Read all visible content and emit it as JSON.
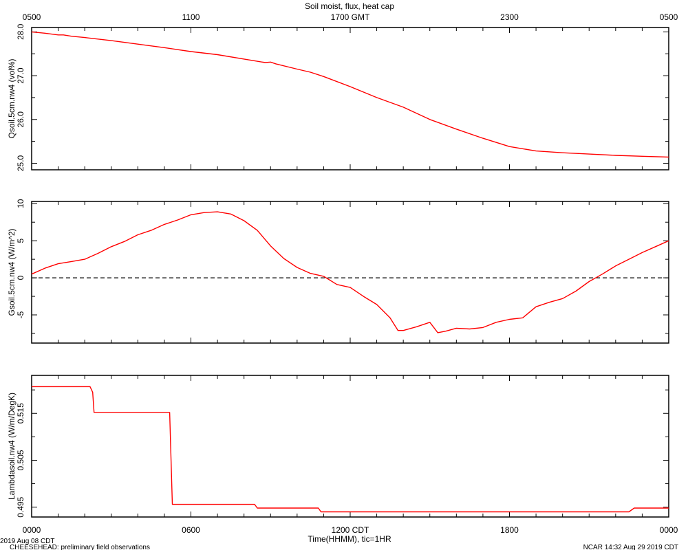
{
  "chart_data": {
    "type": "line",
    "title": "Soil moist, flux, heat cap",
    "top_axis": {
      "ticks": [
        {
          "hour": 0,
          "label": "0500"
        },
        {
          "hour": 6,
          "label": "1100"
        },
        {
          "hour": 12,
          "label": "1700 GMT"
        },
        {
          "hour": 18,
          "label": "2300"
        },
        {
          "hour": 24,
          "label": "0500"
        }
      ]
    },
    "bottom_axis": {
      "title": "Time(HHMM), tic=1HR",
      "ticks": [
        {
          "hour": 0,
          "label": "0000"
        },
        {
          "hour": 6,
          "label": "0600"
        },
        {
          "hour": 12,
          "label": "1200 CDT"
        },
        {
          "hour": 18,
          "label": "1800"
        },
        {
          "hour": 24,
          "label": "0000"
        }
      ],
      "xlim": [
        0,
        24
      ]
    },
    "line_color": "#ff0000",
    "panels": [
      {
        "ylabel": "Qsoil.5cm.nw4 (vol%)",
        "ylim": [
          24.85,
          28.1
        ],
        "yticks": [
          25.0,
          26.0,
          27.0,
          28.0
        ],
        "ytick_labels": [
          "25.0",
          "26.0",
          "27.0",
          "28.0"
        ],
        "x": [
          0,
          0.5,
          1,
          1.2,
          1.5,
          2,
          3,
          4,
          5,
          6,
          7,
          8,
          8.8,
          9,
          9.2,
          10,
          10.5,
          11,
          12,
          13,
          14,
          15,
          16,
          17,
          18,
          19,
          20,
          21,
          22,
          23,
          24
        ],
        "y": [
          28.0,
          27.97,
          27.93,
          27.93,
          27.9,
          27.87,
          27.8,
          27.72,
          27.64,
          27.55,
          27.48,
          27.38,
          27.3,
          27.31,
          27.27,
          27.15,
          27.08,
          26.98,
          26.75,
          26.5,
          26.28,
          26.0,
          25.78,
          25.57,
          25.38,
          25.28,
          25.24,
          25.21,
          25.18,
          25.16,
          25.14
        ]
      },
      {
        "ylabel": "Gsoil.5cm.nw4 (W/m^2)",
        "ylim": [
          -8.8,
          10.3
        ],
        "yticks": [
          -5,
          0,
          5,
          10
        ],
        "ytick_labels": [
          "-5",
          "0",
          "5",
          "10"
        ],
        "reference_line": 0,
        "x": [
          0,
          0.5,
          1,
          1.5,
          2,
          2.5,
          3,
          3.5,
          4,
          4.5,
          5,
          5.5,
          6,
          6.5,
          7,
          7.5,
          8,
          8.5,
          9,
          9.5,
          10,
          10.5,
          11,
          11.5,
          12,
          12.5,
          13,
          13.5,
          13.8,
          14,
          14.5,
          15,
          15.3,
          15.6,
          16,
          16.5,
          17,
          17.5,
          18,
          18.5,
          19,
          19.5,
          20,
          20.5,
          21,
          21.5,
          22,
          22.5,
          23,
          23.5,
          24
        ],
        "y": [
          0.5,
          1.3,
          1.9,
          2.2,
          2.5,
          3.3,
          4.2,
          4.9,
          5.8,
          6.4,
          7.2,
          7.8,
          8.5,
          8.8,
          8.9,
          8.6,
          7.7,
          6.4,
          4.3,
          2.6,
          1.4,
          0.6,
          0.2,
          -0.9,
          -1.3,
          -2.5,
          -3.6,
          -5.4,
          -7.1,
          -7.1,
          -6.6,
          -6.0,
          -7.4,
          -7.2,
          -6.8,
          -6.9,
          -6.7,
          -6.0,
          -5.6,
          -5.4,
          -3.9,
          -3.3,
          -2.8,
          -1.8,
          -0.5,
          0.5,
          1.6,
          2.5,
          3.4,
          4.2,
          5.0
        ]
      },
      {
        "ylabel": "Lambdasoil.nw4 (W/m/DegK)",
        "ylim": [
          0.4929,
          0.5231
        ],
        "yticks": [
          0.495,
          0.505,
          0.515
        ],
        "ytick_labels": [
          "0.495",
          "0.505",
          "0.515"
        ],
        "x": [
          0,
          2.2,
          2.3,
          2.35,
          5.2,
          5.3,
          8.4,
          8.5,
          10.8,
          10.9,
          22.5,
          22.7,
          24
        ],
        "y": [
          0.5207,
          0.5207,
          0.5195,
          0.5152,
          0.5152,
          0.4956,
          0.4956,
          0.4948,
          0.4948,
          0.494,
          0.494,
          0.4948,
          0.4948
        ]
      }
    ]
  },
  "footer": {
    "date": "2019 Aug 08 CDT",
    "project": "CHEESEHEAD: preliminary field observations",
    "credit": "NCAR 14:32 Aug 29 2019 CDT"
  }
}
